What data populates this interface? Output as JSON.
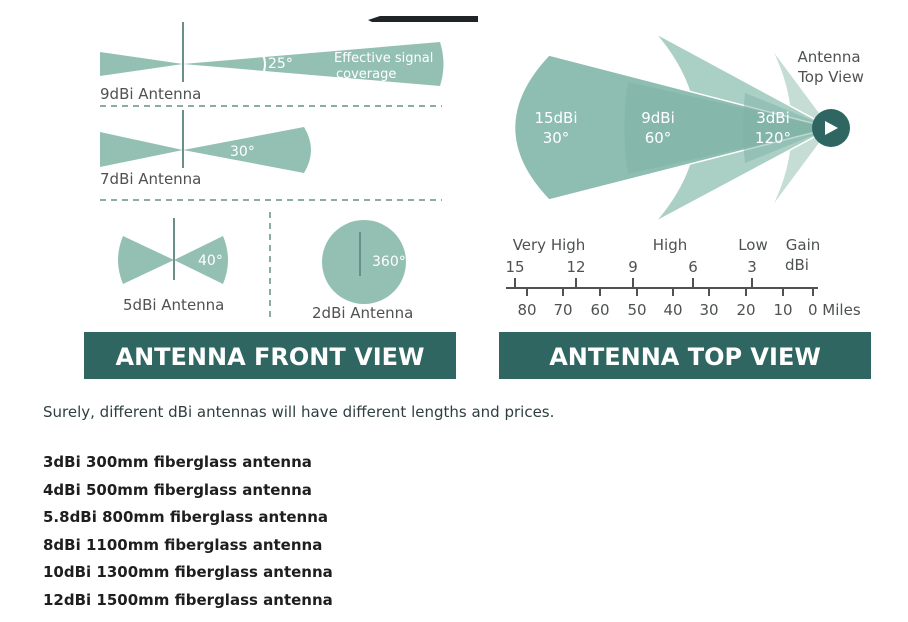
{
  "front_view": {
    "banner": "ANTENNA FRONT VIEW",
    "antenna_9dbi": {
      "label": "9dBi Antenna",
      "angle": "25°",
      "note_line1": "Effective signal",
      "note_line2": "coverage"
    },
    "antenna_7dbi": {
      "label": "7dBi Antenna",
      "angle": "30°"
    },
    "antenna_5dbi": {
      "label": "5dBi Antenna",
      "angle": "40°"
    },
    "antenna_2dbi": {
      "label": "2dBi Antenna",
      "angle": "360°"
    }
  },
  "top_view": {
    "banner": "ANTENNA TOP VIEW",
    "title_line1": "Antenna",
    "title_line2": "Top View",
    "lobes": [
      {
        "gain": "15dBi",
        "angle": "30°"
      },
      {
        "gain": "9dBi",
        "angle": "60°"
      },
      {
        "gain": "3dBi",
        "angle": "120°"
      }
    ],
    "scale": {
      "categories": [
        "Very High",
        "High",
        "Low"
      ],
      "gain_header_line1": "Gain",
      "gain_header_line2": "dBi",
      "gain_ticks": [
        "15",
        "12",
        "9",
        "6",
        "3"
      ],
      "miles_ticks": [
        "80",
        "70",
        "60",
        "50",
        "40",
        "30",
        "20",
        "10",
        "0 Miles"
      ]
    }
  },
  "article": {
    "intro": "Surely, different dBi antennas will have different lengths and prices.",
    "items": [
      "3dBi 300mm fiberglass antenna",
      "4dBi 500mm fiberglass antenna",
      "5.8dBi 800mm fiberglass antenna",
      "8dBi 1100mm fiberglass antenna",
      "10dBi 1300mm fiberglass antenna",
      "12dBi 1500mm fiberglass antenna"
    ]
  },
  "colors": {
    "beam": "#94c0b4",
    "beam_dark": "#6aa090",
    "banner": "#2f6662",
    "text": "#4e5250"
  }
}
